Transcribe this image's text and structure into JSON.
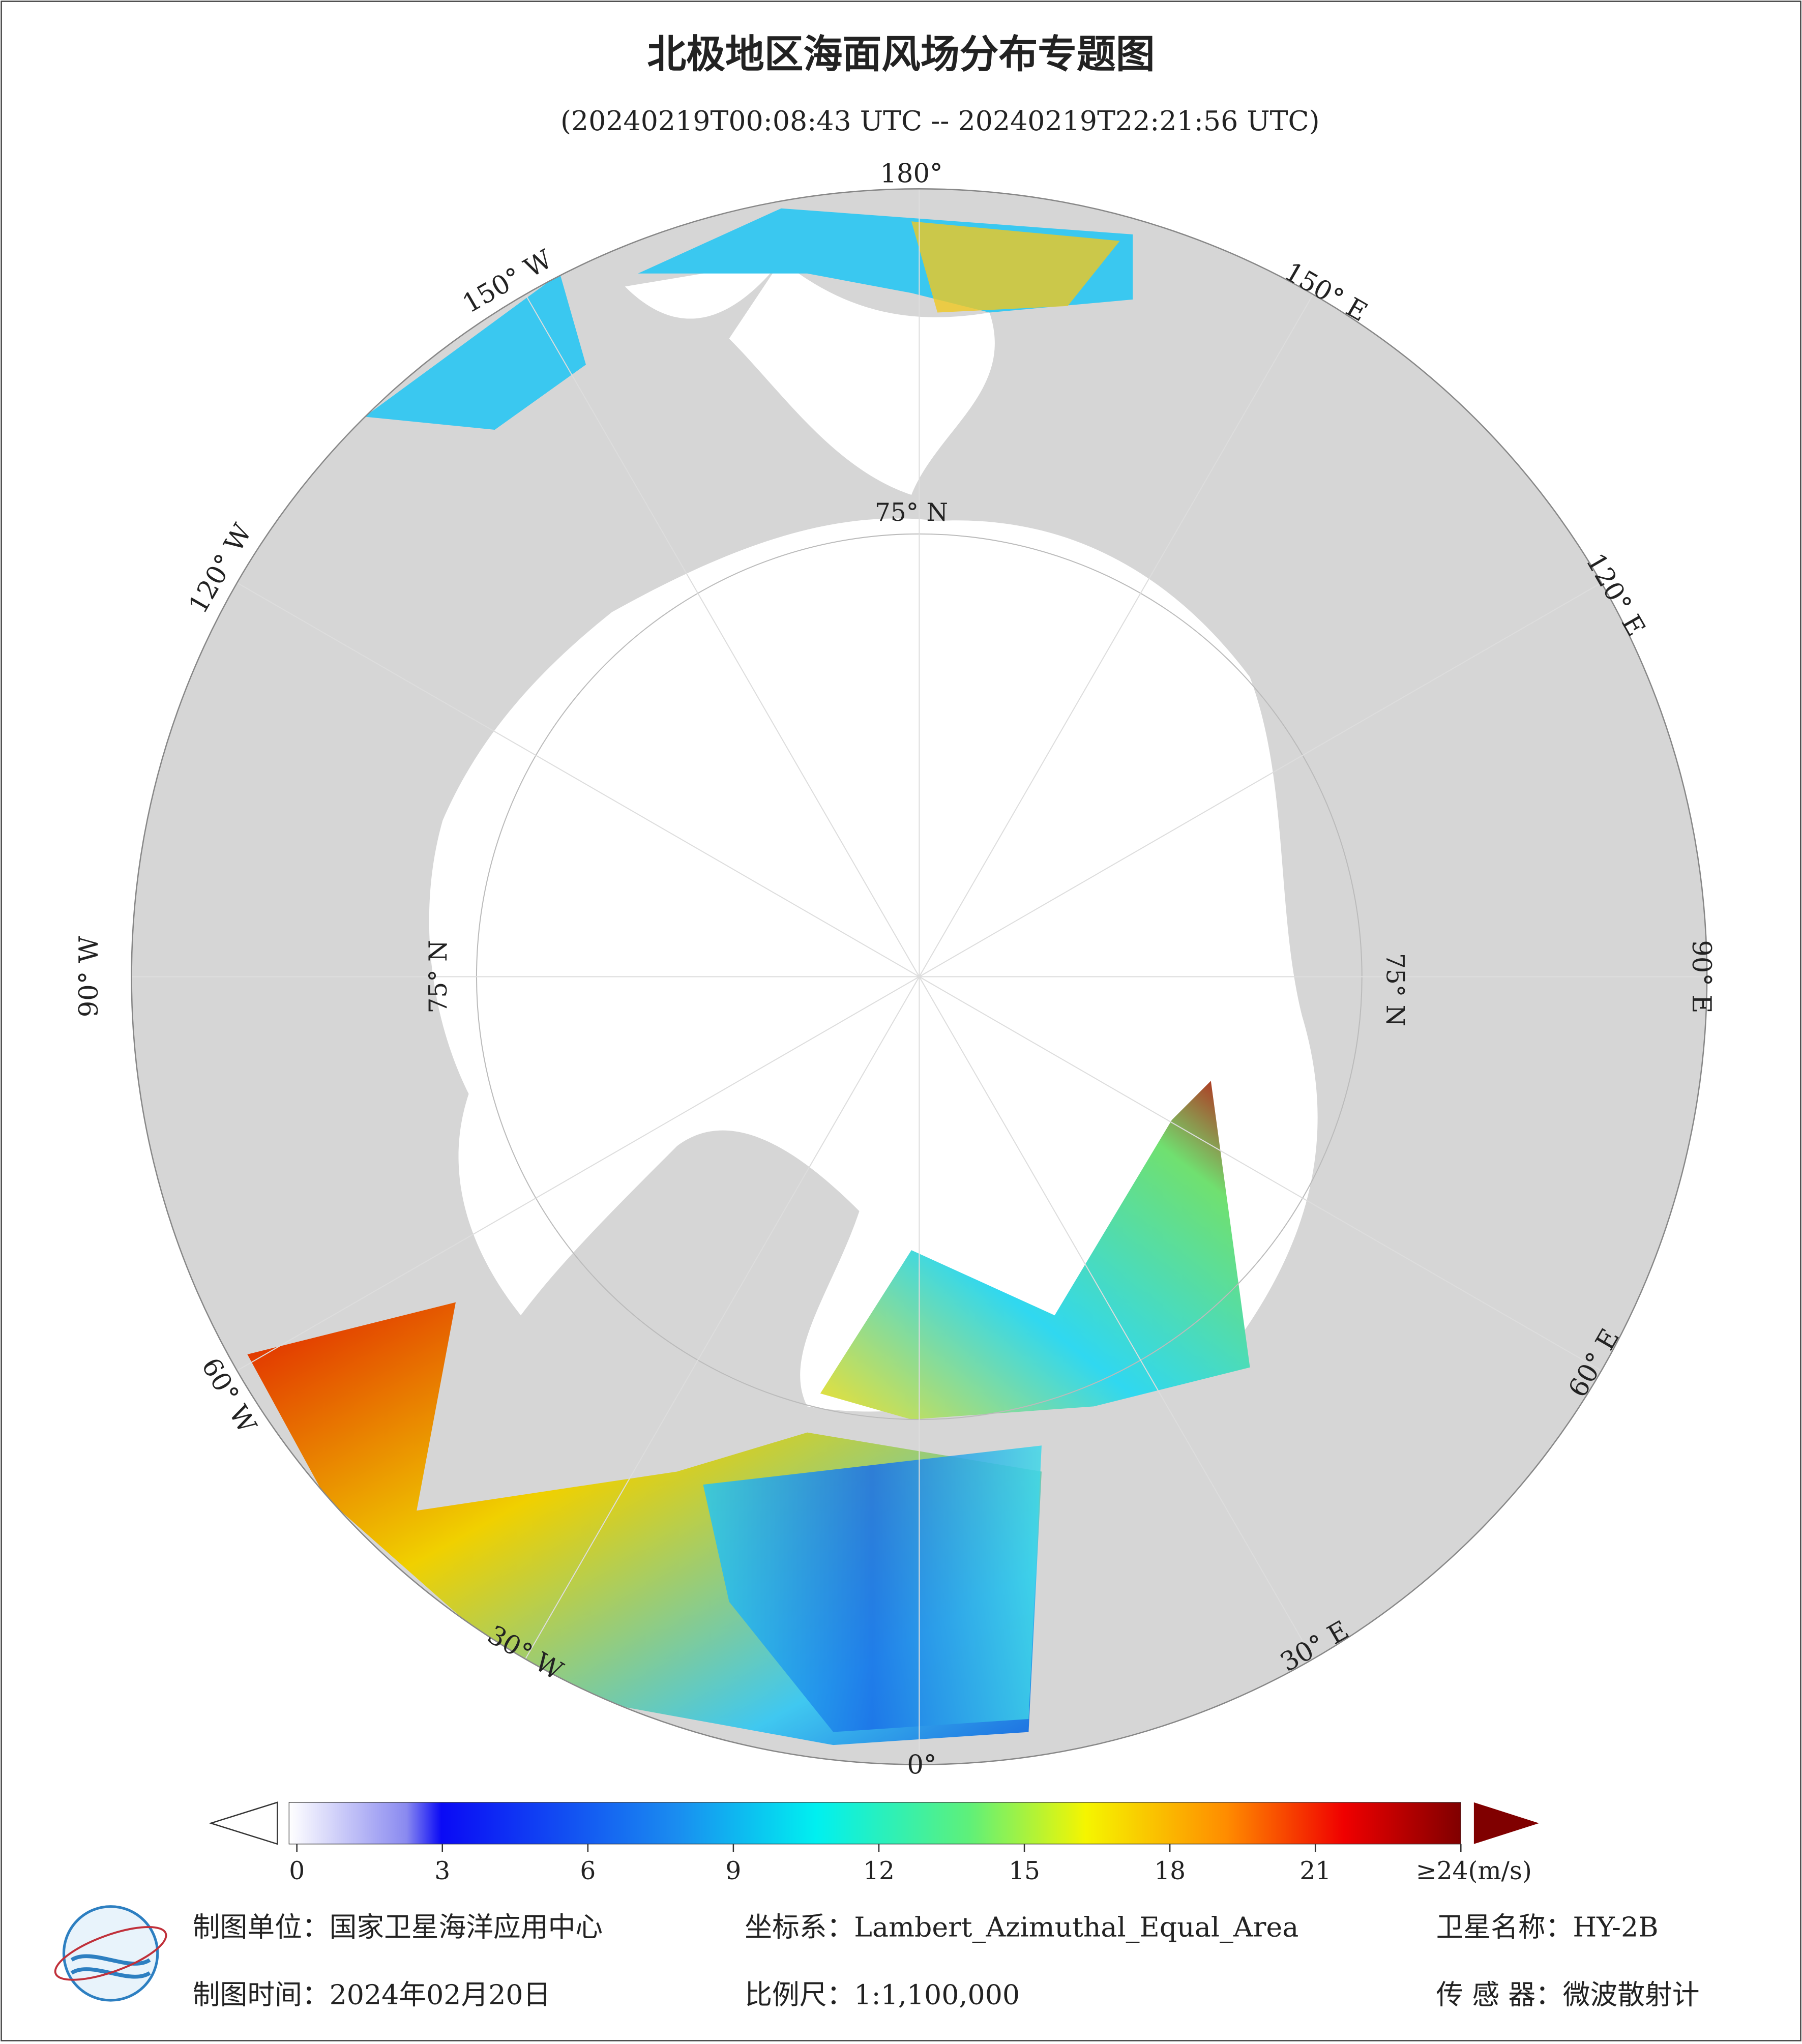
{
  "header": {
    "title": "北极地区海面风场分布专题图",
    "subtitle": "(20240219T00:08:43 UTC -- 20240219T22:21:56 UTC)"
  },
  "map": {
    "meridian_labels": [
      "180°",
      "150° W",
      "120° W",
      "90° W",
      "60° W",
      "30° W",
      "0°",
      "30° E",
      "60° E",
      "90° E",
      "120° E",
      "150° E"
    ],
    "parallel_labels": [
      "75° N",
      "75° N",
      "75° N"
    ]
  },
  "colorbar": {
    "range": [
      0,
      24
    ],
    "ticks": [
      0,
      3,
      6,
      9,
      12,
      15,
      18,
      21,
      {
        "value": 24,
        "label": "≥24(m/s)"
      }
    ]
  },
  "footer": {
    "rows": [
      [
        "制图单位：国家卫星海洋应用中心",
        "坐标系：Lambert_Azimuthal_Equal_Area",
        "卫星名称：HY-2B"
      ],
      [
        "制图时间：2024年02月20日",
        "比例尺：1:1,100,000",
        "传 感 器：微波散射计"
      ]
    ]
  }
}
